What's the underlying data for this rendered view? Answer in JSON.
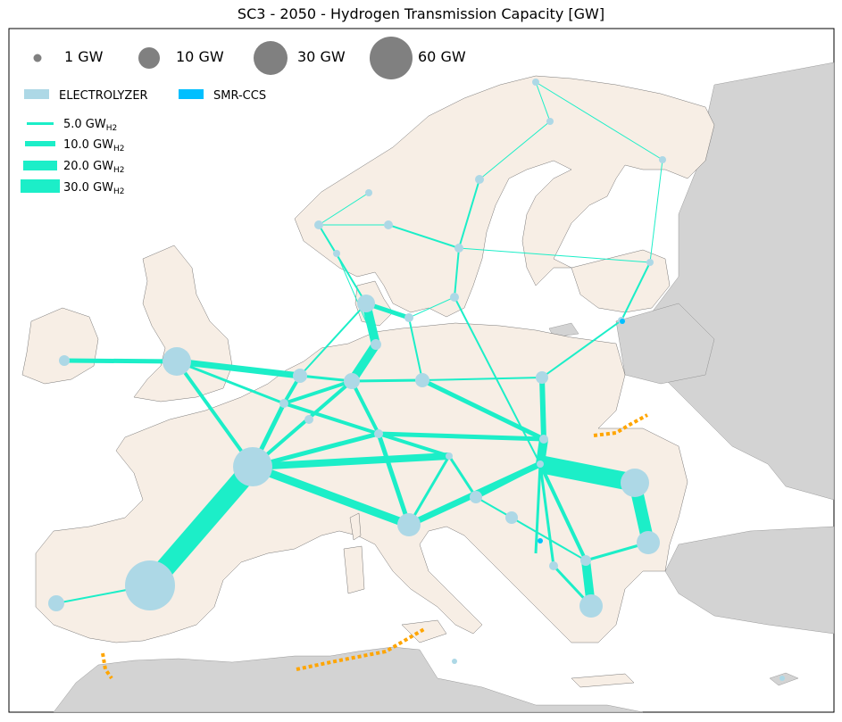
{
  "title": "SC3 - 2050 - Hydrogen Transmission Capacity [GW]",
  "colors": {
    "land": "#f7eee5",
    "land_outside": "#d3d3d3",
    "sea": "#ffffff",
    "pipeline": "#1ceec8",
    "electrolyzer": "#add8e6",
    "smr_ccs": "#00bfff",
    "import_route": "#ffa500",
    "size_marker": "#808080"
  },
  "legend": {
    "sizes": [
      {
        "label": "1 GW",
        "gw": 1
      },
      {
        "label": "10 GW",
        "gw": 10
      },
      {
        "label": "30 GW",
        "gw": 30
      },
      {
        "label": "60 GW",
        "gw": 60
      }
    ],
    "technologies": [
      {
        "label": "ELECTROLYZER",
        "color": "#add8e6"
      },
      {
        "label": "SMR-CCS",
        "color": "#00bfff"
      }
    ],
    "pipelines": [
      {
        "value": "5.0 GW",
        "sub": "H2",
        "gw": 5
      },
      {
        "value": "10.0 GW",
        "sub": "H2",
        "gw": 10
      },
      {
        "value": "20.0 GW",
        "sub": "H2",
        "gw": 20
      },
      {
        "value": "30.0 GW",
        "sub": "H2",
        "gw": 30
      }
    ]
  }
}
